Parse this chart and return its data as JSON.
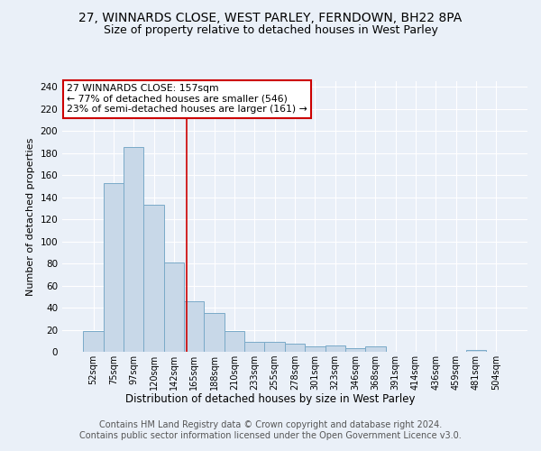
{
  "title1": "27, WINNARDS CLOSE, WEST PARLEY, FERNDOWN, BH22 8PA",
  "title2": "Size of property relative to detached houses in West Parley",
  "xlabel": "Distribution of detached houses by size in West Parley",
  "ylabel": "Number of detached properties",
  "bin_labels": [
    "52sqm",
    "75sqm",
    "97sqm",
    "120sqm",
    "142sqm",
    "165sqm",
    "188sqm",
    "210sqm",
    "233sqm",
    "255sqm",
    "278sqm",
    "301sqm",
    "323sqm",
    "346sqm",
    "368sqm",
    "391sqm",
    "414sqm",
    "436sqm",
    "459sqm",
    "481sqm",
    "504sqm"
  ],
  "bar_heights": [
    19,
    153,
    185,
    133,
    81,
    46,
    35,
    19,
    9,
    9,
    7,
    5,
    6,
    3,
    5,
    0,
    0,
    0,
    0,
    2,
    0
  ],
  "bar_color": "#c8d8e8",
  "bar_edge_color": "#7aaac8",
  "annotation_text": "27 WINNARDS CLOSE: 157sqm\n← 77% of detached houses are smaller (546)\n23% of semi-detached houses are larger (161) →",
  "annotation_box_color": "#ffffff",
  "annotation_box_edge": "#cc0000",
  "vline_color": "#cc0000",
  "footer_text": "Contains HM Land Registry data © Crown copyright and database right 2024.\nContains public sector information licensed under the Open Government Licence v3.0.",
  "ylim": [
    0,
    245
  ],
  "yticks": [
    0,
    20,
    40,
    60,
    80,
    100,
    120,
    140,
    160,
    180,
    200,
    220,
    240
  ],
  "background_color": "#eaf0f8",
  "grid_color": "#ffffff",
  "title_fontsize": 10,
  "subtitle_fontsize": 9,
  "footer_fontsize": 7,
  "vline_x": 4.62
}
